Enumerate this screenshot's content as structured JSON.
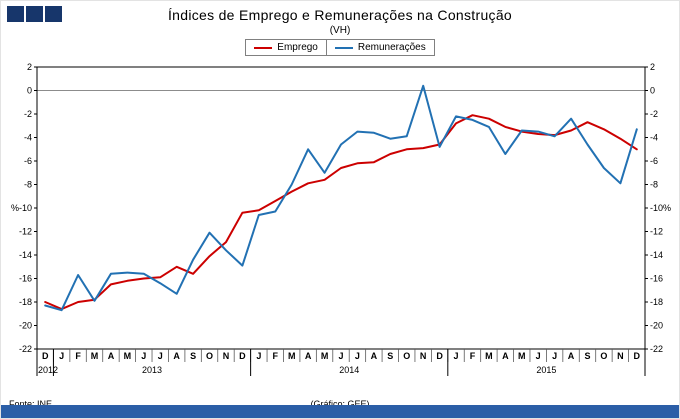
{
  "header": {
    "title": "Índices de Emprego e Remunerações na Construção",
    "subtitle": "(VH)"
  },
  "logo": {
    "icon": "three-blue-squares-logo"
  },
  "legend": {
    "items": [
      {
        "label": "Emprego",
        "color": "#cc0000"
      },
      {
        "label": "Remunerações",
        "color": "#2271b3"
      }
    ]
  },
  "footer": {
    "source": "Fonte: INE",
    "credit": "(Gráfico: GEE)"
  },
  "chart_data": {
    "type": "line",
    "title": "Índices de Emprego e Remunerações na Construção",
    "subtitle": "(VH)",
    "ylabel": "%",
    "y_unit": "%",
    "ylim": [
      -22,
      2
    ],
    "ytick_step": 2,
    "grid": false,
    "legend_position": "top",
    "x_months": [
      "D",
      "J",
      "F",
      "M",
      "A",
      "M",
      "J",
      "J",
      "A",
      "S",
      "O",
      "N",
      "D",
      "J",
      "F",
      "M",
      "A",
      "M",
      "J",
      "J",
      "A",
      "S",
      "O",
      "N",
      "D",
      "J",
      "F",
      "M",
      "A",
      "M",
      "J",
      "J",
      "A",
      "S",
      "O",
      "N",
      "D"
    ],
    "year_groups": [
      {
        "label": "2012",
        "count": 1
      },
      {
        "label": "2013",
        "count": 12
      },
      {
        "label": "2014",
        "count": 12
      },
      {
        "label": "2015",
        "count": 12
      }
    ],
    "series": [
      {
        "name": "Emprego",
        "color": "#cc0000",
        "values": [
          -18.0,
          -18.6,
          -18.0,
          -17.8,
          -16.5,
          -16.2,
          -16.0,
          -15.9,
          -15.0,
          -15.6,
          -14.1,
          -12.9,
          -10.4,
          -10.2,
          -9.4,
          -8.6,
          -7.9,
          -7.6,
          -6.6,
          -6.2,
          -6.1,
          -5.4,
          -5.0,
          -4.9,
          -4.6,
          -2.8,
          -2.1,
          -2.4,
          -3.1,
          -3.5,
          -3.7,
          -3.8,
          -3.4,
          -2.7,
          -3.3,
          -4.1,
          -5.0
        ]
      },
      {
        "name": "Remunerações",
        "color": "#2271b3",
        "values": [
          -18.3,
          -18.7,
          -15.7,
          -17.9,
          -15.6,
          -15.5,
          -15.6,
          -16.4,
          -17.3,
          -14.4,
          -12.1,
          -13.6,
          -14.9,
          -10.6,
          -10.3,
          -8.0,
          -5.0,
          -7.0,
          -4.6,
          -3.5,
          -3.6,
          -4.1,
          -3.9,
          0.4,
          -4.8,
          -2.2,
          -2.5,
          -3.1,
          -5.4,
          -3.4,
          -3.5,
          -3.9,
          -2.4,
          -4.6,
          -6.6,
          -7.9,
          -3.3
        ]
      }
    ]
  }
}
